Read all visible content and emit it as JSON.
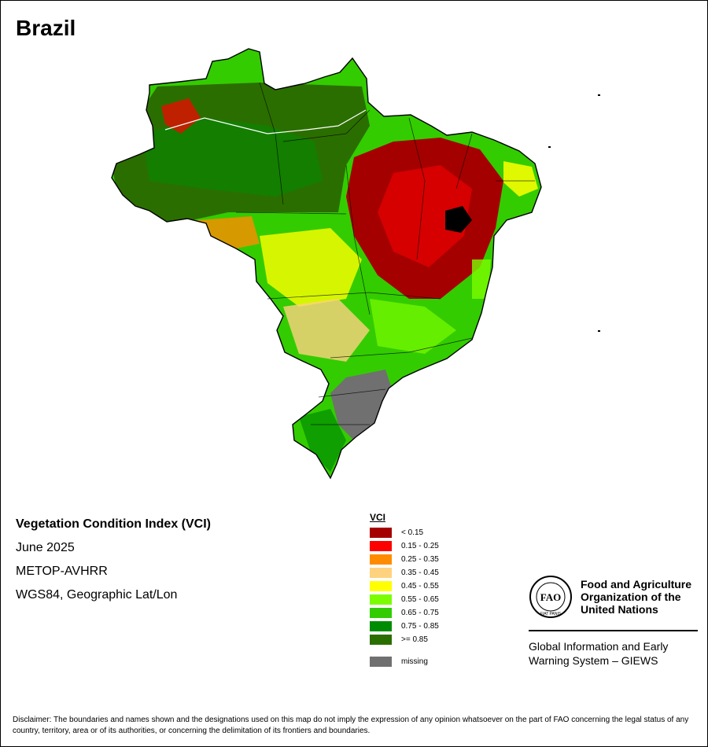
{
  "map_title": "Brazil",
  "info": {
    "product": "Vegetation Condition Index (VCI)",
    "period": "June 2025",
    "sensor": "METOP-AVHRR",
    "projection": "WGS84, Geographic Lat/Lon"
  },
  "legend": {
    "title": "VCI",
    "classes": [
      {
        "label": "< 0.15",
        "color": "#a50000"
      },
      {
        "label": "0.15 - 0.25",
        "color": "#ff0000"
      },
      {
        "label": "0.25 - 0.35",
        "color": "#ff8c00"
      },
      {
        "label": "0.35 - 0.45",
        "color": "#ffd27f"
      },
      {
        "label": "0.45 - 0.55",
        "color": "#ffff00"
      },
      {
        "label": "0.55 - 0.65",
        "color": "#7cfc00"
      },
      {
        "label": "0.65 - 0.75",
        "color": "#33cc00"
      },
      {
        "label": "0.75 - 0.85",
        "color": "#008c00"
      },
      {
        "label": ">= 0.85",
        "color": "#2b6e00"
      }
    ],
    "missing": {
      "label": "missing",
      "color": "#707070"
    }
  },
  "org": {
    "line1": "Food and Agriculture",
    "line2": "Organization of the",
    "line3": "United Nations",
    "logo_text": "FAO",
    "logo_motto": "FIAT PANIS",
    "giews_line1": "Global Information and Early",
    "giews_line2": "Warning System – GIEWS"
  },
  "disclaimer": "Disclaimer: The boundaries and names shown and the designations used on this map do not imply the expression of any opinion whatsoever on the part of FAO concerning the legal status of any country, territory, area or of its authorities, or concerning the delimitation of its frontiers and boundaries."
}
